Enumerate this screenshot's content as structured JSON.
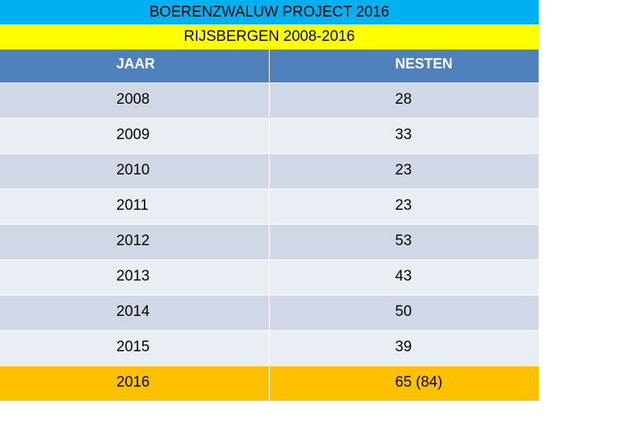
{
  "title": "BOERENZWALUW PROJECT  2016",
  "subtitle": "RIJSBERGEN  2008-2016",
  "chart_data": {
    "type": "table",
    "columns": [
      "JAAR",
      "NESTEN"
    ],
    "rows": [
      [
        "2008",
        "28"
      ],
      [
        "2009",
        "33"
      ],
      [
        "2010",
        "23"
      ],
      [
        "2011",
        "23"
      ],
      [
        "2012",
        "53"
      ],
      [
        "2013",
        "43"
      ],
      [
        "2014",
        "50"
      ],
      [
        "2015",
        "39"
      ],
      [
        "2016",
        "65  (84)"
      ]
    ],
    "highlight_row": "2016",
    "colors": {
      "title_band": "#00b0f0",
      "subtitle_band": "#ffff00",
      "header": "#4f81bd",
      "row_even": "#d0d8e8",
      "row_odd": "#e9edf4",
      "highlight": "#ffc000"
    }
  }
}
